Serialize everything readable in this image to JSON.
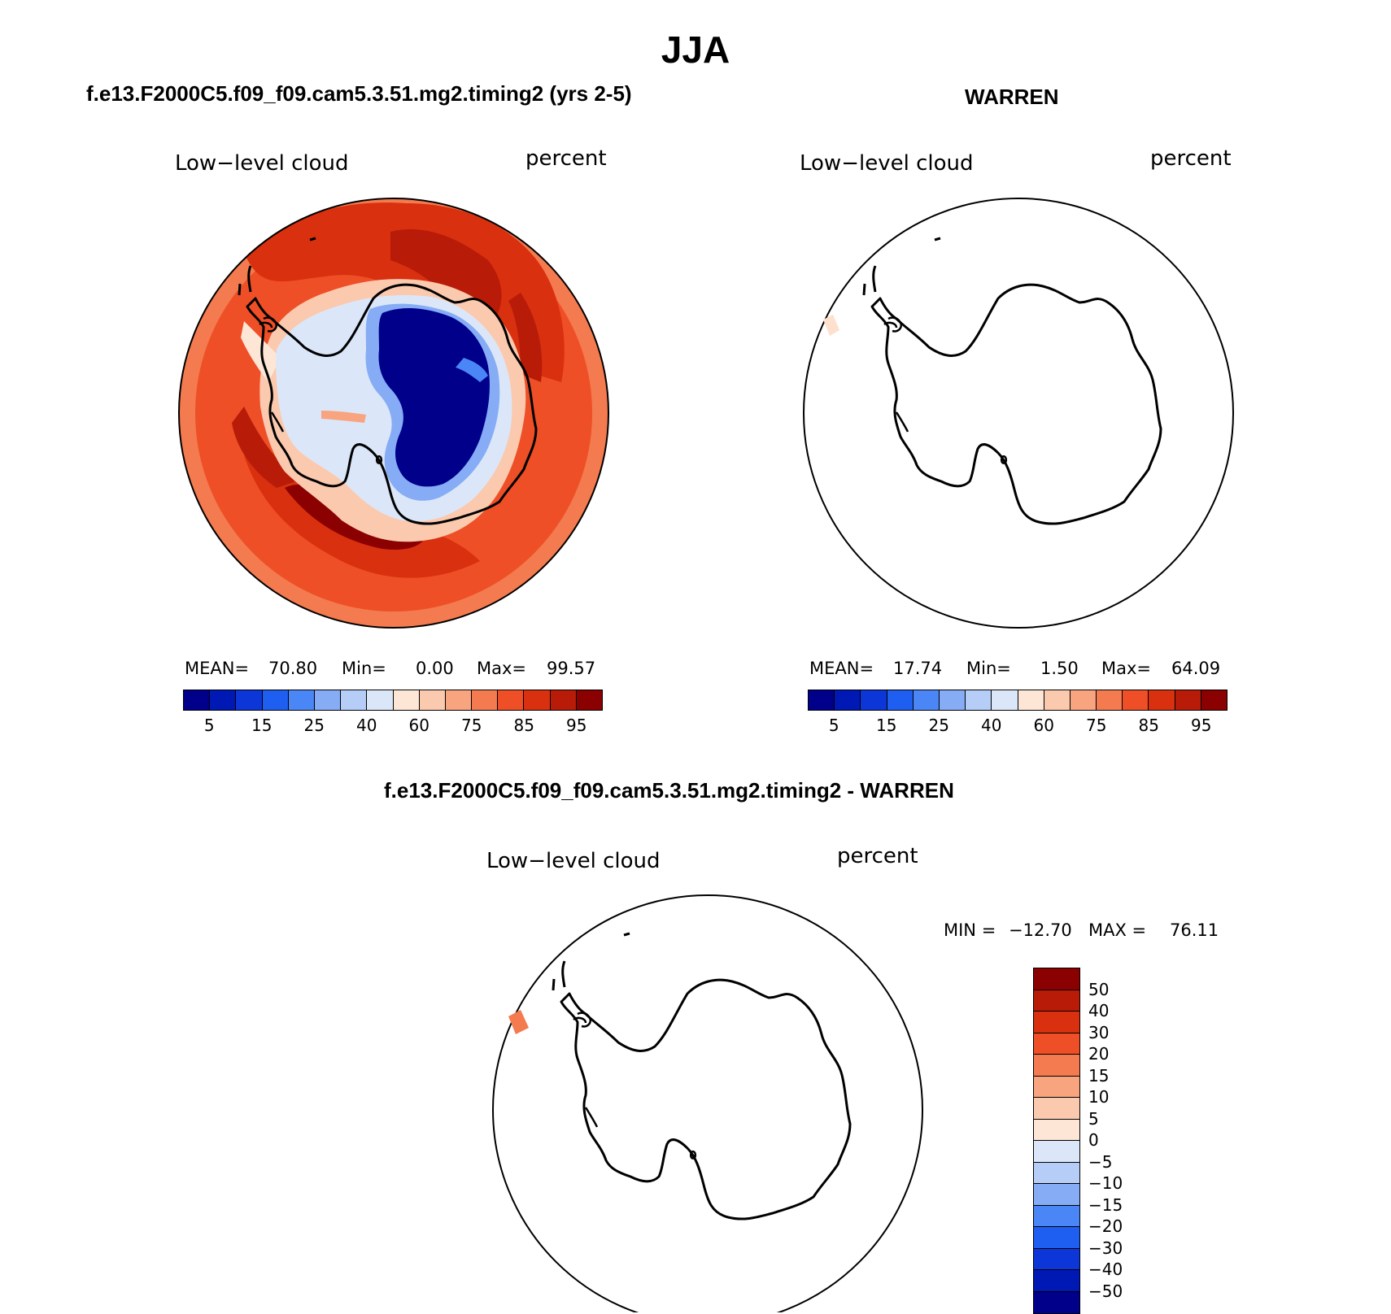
{
  "title": "JJA",
  "panels": [
    {
      "title": "f.e13.F2000C5.f09_f09.cam5.3.51.mg2.timing2 (yrs 2-5)",
      "variable": "Low−level cloud",
      "units": "percent",
      "mean_label": "MEAN=",
      "mean": "70.80",
      "min_label": "Min=",
      "min": "0.00",
      "max_label": "Max=",
      "max": "99.57"
    },
    {
      "title": "WARREN",
      "variable": "Low−level cloud",
      "units": "percent",
      "mean_label": "MEAN=",
      "mean": "17.74",
      "min_label": "Min=",
      "min": "1.50",
      "max_label": "Max=",
      "max": "64.09"
    },
    {
      "title": "f.e13.F2000C5.f09_f09.cam5.3.51.mg2.timing2 - WARREN",
      "variable": "Low−level cloud",
      "units": "percent",
      "min_label": "MIN =",
      "min": "−12.70",
      "max_label": "MAX =",
      "max": "76.11"
    }
  ],
  "colorbar_abs": {
    "colors": [
      "#00008b",
      "#0018b4",
      "#0d36d8",
      "#1e5ef0",
      "#4a86f5",
      "#86acf5",
      "#b5cdf7",
      "#dbe7f9",
      "#fde6d6",
      "#fbc9ae",
      "#f8a47f",
      "#f47a4f",
      "#ee4f26",
      "#d9300f",
      "#b81c08",
      "#8b0000"
    ],
    "ticks": [
      "5",
      "15",
      "25",
      "40",
      "60",
      "75",
      "85",
      "95"
    ]
  },
  "colorbar_diff": {
    "colors": [
      "#8b0000",
      "#b81c08",
      "#d9300f",
      "#ee4f26",
      "#f47a4f",
      "#f8a47f",
      "#fbc9ae",
      "#fde6d6",
      "#dbe7f9",
      "#b5cdf7",
      "#86acf5",
      "#4a86f5",
      "#1e5ef0",
      "#0d36d8",
      "#0018b4",
      "#00008b"
    ],
    "ticks": [
      "50",
      "40",
      "30",
      "20",
      "15",
      "10",
      "5",
      "0",
      "−5",
      "−10",
      "−15",
      "−20",
      "−30",
      "−40",
      "−50"
    ]
  }
}
